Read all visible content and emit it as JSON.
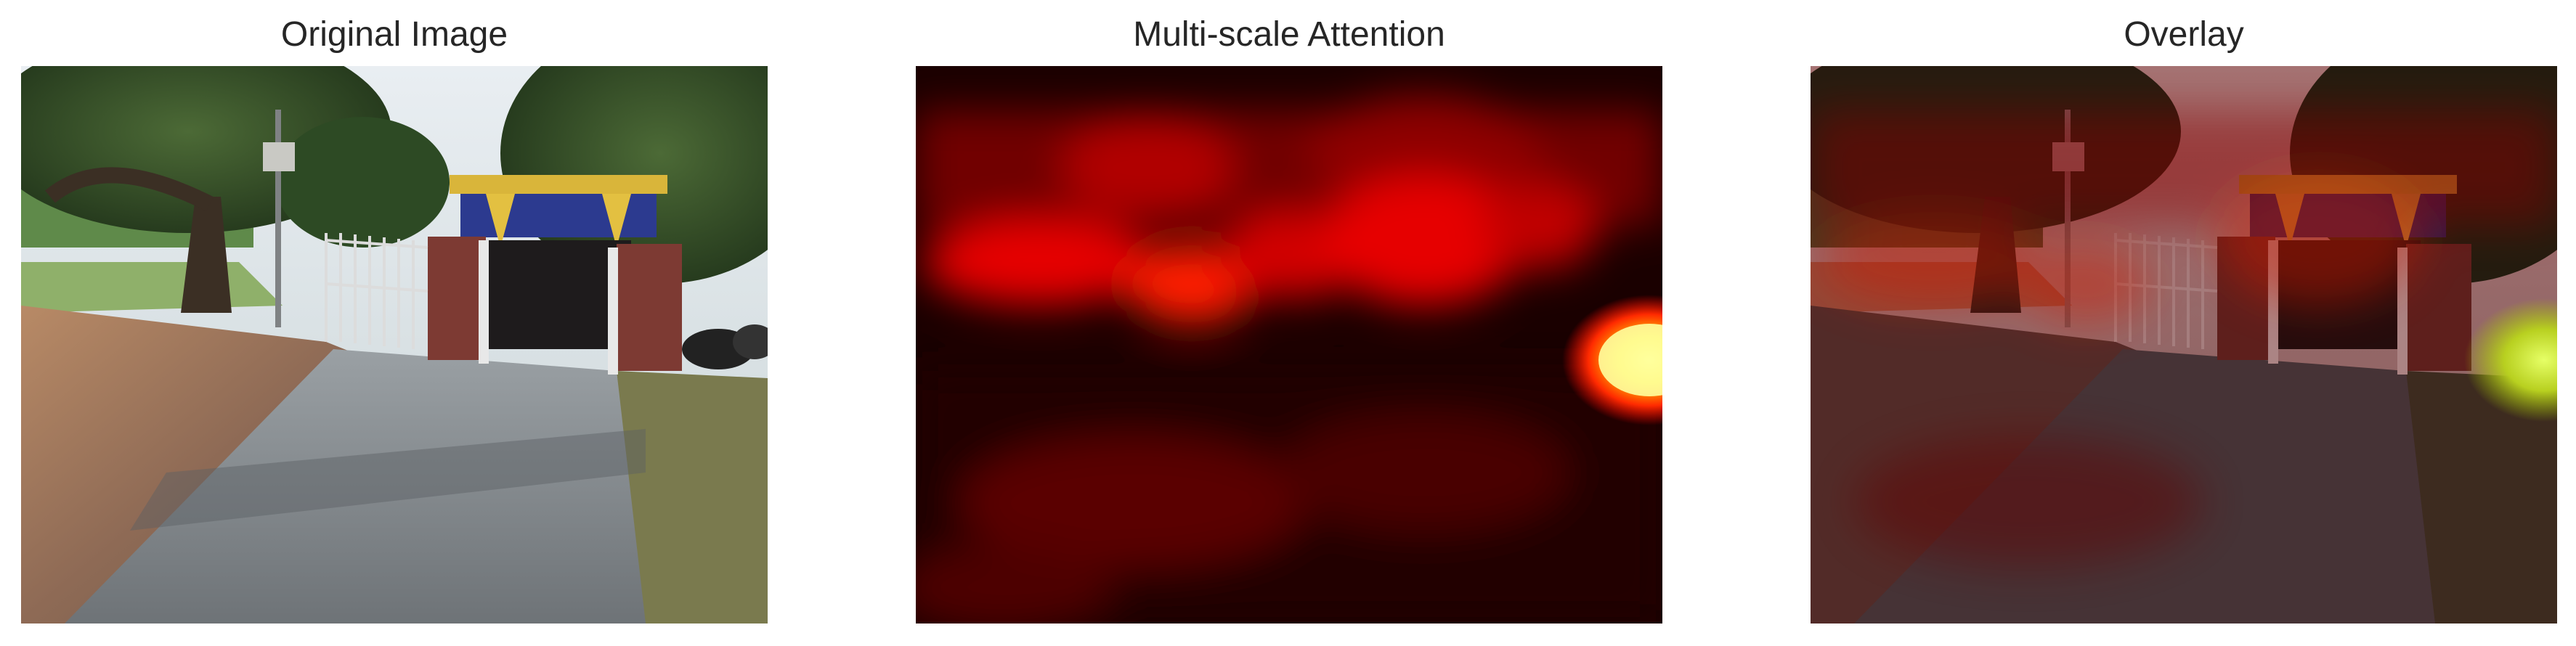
{
  "figure": {
    "panels": [
      {
        "title": "Original Image"
      },
      {
        "title": "Multi-scale Attention"
      },
      {
        "title": "Overlay"
      }
    ],
    "colormap": "hot"
  }
}
